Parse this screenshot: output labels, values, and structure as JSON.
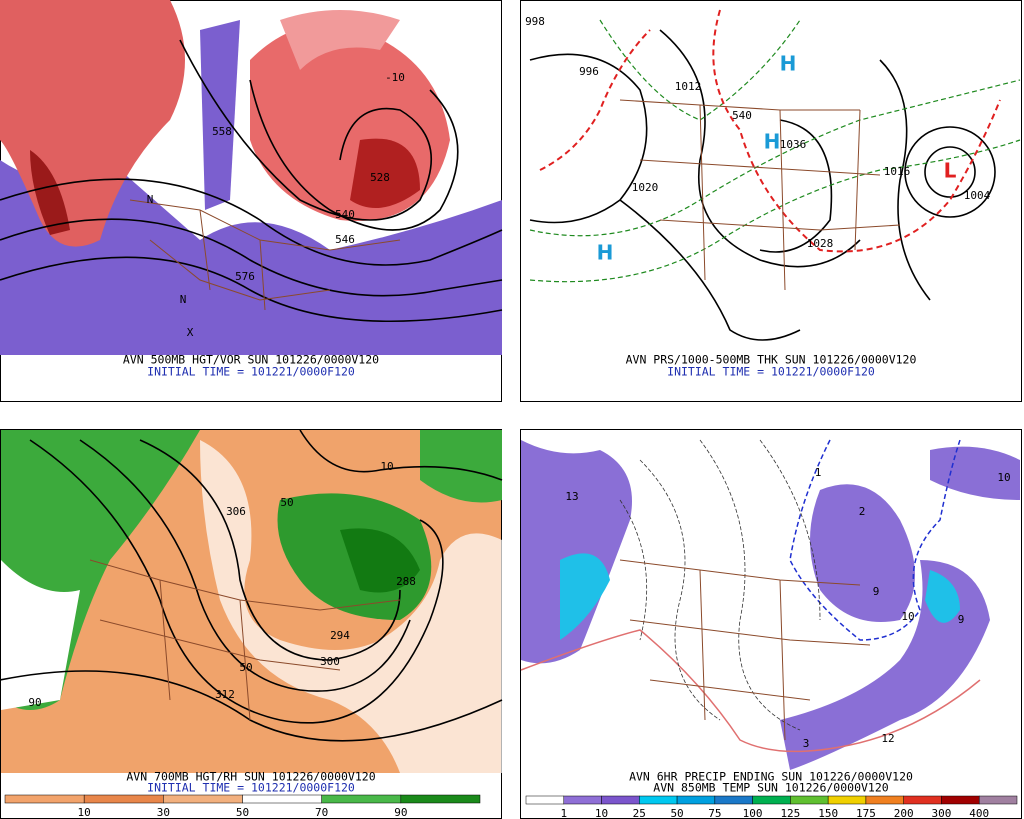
{
  "panels": [
    {
      "caption": [
        "AVN 500MB HGT/VOR SUN 101226/0000V120",
        "INITIAL TIME = 101221/0000F120"
      ],
      "labels": [
        "576",
        "540",
        "546",
        "558",
        "528",
        "-10",
        "N",
        "N",
        "X"
      ]
    },
    {
      "caption": [
        "AVN PRS/1000-500MB THK SUN 101226/0000V120",
        "INITIAL TIME = 101221/0000F120"
      ],
      "labels": [
        "996",
        "1012",
        "1036",
        "1020",
        "1028",
        "1016",
        "1004",
        "998",
        "540",
        "H",
        "H",
        "H",
        "L"
      ]
    },
    {
      "caption": [
        "AVN 700MB HGT/RH SUN 101226/0000V120",
        "INITIAL TIME = 101221/0000F120"
      ],
      "labels": [
        "306",
        "50",
        "300",
        "294",
        "288",
        "312",
        "10",
        "90",
        "50"
      ],
      "colorbar": {
        "labels": [
          "10",
          "30",
          "50",
          "70",
          "90"
        ],
        "colors": [
          "#f2a36b",
          "#e8864a",
          "#f2b07e",
          "#ffffff",
          "#49b849",
          "#1a8a1a"
        ]
      }
    },
    {
      "caption": [
        "AVN 6HR PRECIP ENDING SUN 101226/0000V120",
        "AVN 850MB TEMP SUN 101226/0000V120"
      ],
      "labels": [
        "3",
        "12",
        "13",
        "1",
        "2",
        "9",
        "10",
        "9",
        "10"
      ],
      "colorbar": {
        "labels": [
          "1",
          "10",
          "25",
          "50",
          "75",
          "100",
          "125",
          "150",
          "175",
          "200",
          "300",
          "400"
        ],
        "colors": [
          "#ffffff",
          "#8f6fd6",
          "#7b55cc",
          "#00c8f0",
          "#00a0e0",
          "#1a78c8",
          "#00b050",
          "#60c030",
          "#f0d000",
          "#f08020",
          "#e03020",
          "#a00000",
          "#a080a0"
        ]
      }
    }
  ]
}
